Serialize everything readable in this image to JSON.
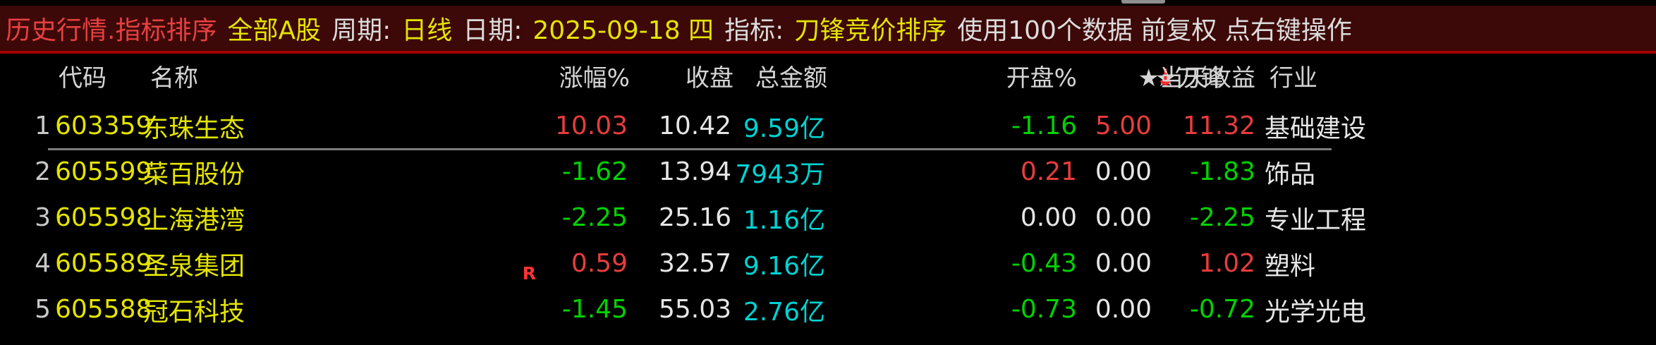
{
  "header": {
    "title": "历史行情.指标排序",
    "market": "全部A股",
    "period_label": "周期:",
    "period_value": "日线",
    "date_label": "日期:",
    "date_value": "2025-09-18 四",
    "indicator_label": "指标:",
    "indicator_value": "刀锋竞价排序",
    "info": "使用100个数据 前复权 点右键操作"
  },
  "table": {
    "columns": [
      "代码",
      "名称",
      "涨幅%",
      "收盘",
      "总金额",
      "开盘%",
      "★刀锋",
      "★当天收益",
      "行业"
    ],
    "sort_arrow": "↓",
    "sorted_column": "★刀锋",
    "sort_direction": "desc",
    "rows": [
      {
        "num": "1",
        "code": "603359",
        "name": "东珠生态",
        "r": "",
        "selected": true,
        "cells": {
          "chg": {
            "v": "10.03",
            "c": "red"
          },
          "close": {
            "v": "10.42",
            "c": "white"
          },
          "amount": {
            "v": "9.59亿",
            "c": "cyan"
          },
          "open": {
            "v": "-1.16",
            "c": "green"
          },
          "blade": {
            "v": "5.00",
            "c": "red"
          },
          "gain": {
            "v": "11.32",
            "c": "red"
          },
          "industry": {
            "v": "基础建设",
            "c": "white"
          }
        }
      },
      {
        "num": "2",
        "code": "605599",
        "name": "菜百股份",
        "r": "",
        "selected": false,
        "cells": {
          "chg": {
            "v": "-1.62",
            "c": "green"
          },
          "close": {
            "v": "13.94",
            "c": "white"
          },
          "amount": {
            "v": "7943万",
            "c": "cyan"
          },
          "open": {
            "v": "0.21",
            "c": "red"
          },
          "blade": {
            "v": "0.00",
            "c": "white"
          },
          "gain": {
            "v": "-1.83",
            "c": "green"
          },
          "industry": {
            "v": "饰品",
            "c": "white"
          }
        }
      },
      {
        "num": "3",
        "code": "605598",
        "name": "上海港湾",
        "r": "",
        "selected": false,
        "cells": {
          "chg": {
            "v": "-2.25",
            "c": "green"
          },
          "close": {
            "v": "25.16",
            "c": "white"
          },
          "amount": {
            "v": "1.16亿",
            "c": "cyan"
          },
          "open": {
            "v": "0.00",
            "c": "white"
          },
          "blade": {
            "v": "0.00",
            "c": "white"
          },
          "gain": {
            "v": "-2.25",
            "c": "green"
          },
          "industry": {
            "v": "专业工程",
            "c": "white"
          }
        }
      },
      {
        "num": "4",
        "code": "605589",
        "name": "圣泉集团",
        "r": "R",
        "selected": false,
        "cells": {
          "chg": {
            "v": "0.59",
            "c": "red"
          },
          "close": {
            "v": "32.57",
            "c": "white"
          },
          "amount": {
            "v": "9.16亿",
            "c": "cyan"
          },
          "open": {
            "v": "-0.43",
            "c": "green"
          },
          "blade": {
            "v": "0.00",
            "c": "white"
          },
          "gain": {
            "v": "1.02",
            "c": "red"
          },
          "industry": {
            "v": "塑料",
            "c": "white"
          }
        }
      },
      {
        "num": "5",
        "code": "605588",
        "name": "冠石科技",
        "r": "",
        "selected": false,
        "cells": {
          "chg": {
            "v": "-1.45",
            "c": "green"
          },
          "close": {
            "v": "55.03",
            "c": "white"
          },
          "amount": {
            "v": "2.76亿",
            "c": "cyan"
          },
          "open": {
            "v": "-0.73",
            "c": "green"
          },
          "blade": {
            "v": "0.00",
            "c": "white"
          },
          "gain": {
            "v": "-0.72",
            "c": "green"
          },
          "industry": {
            "v": "光学光电",
            "c": "white"
          }
        }
      }
    ]
  },
  "colors": {
    "up_red": "#e83c3c",
    "down_green": "#00d200",
    "neutral_white": "#e6e6e6",
    "amount_cyan": "#00d2d2",
    "code_yellow": "#e4e400",
    "title_red": "#e64040",
    "header_bar_bg": "#3d0808",
    "separator_red": "#a40000",
    "selection_underline_gray": "#7d7d7d",
    "background": "#000000"
  }
}
